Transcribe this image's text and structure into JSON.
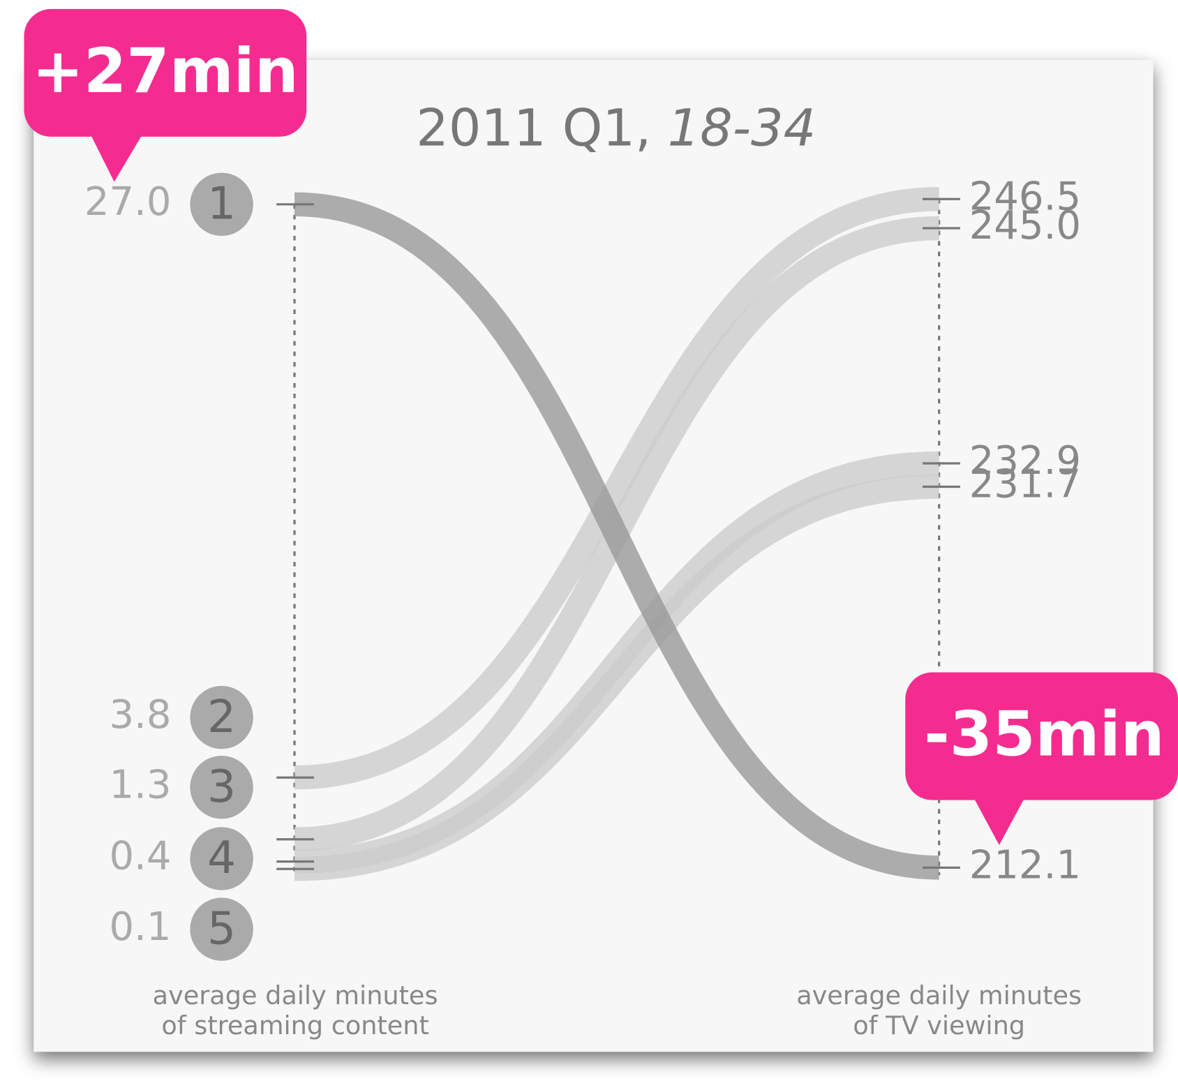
{
  "chart_data": {
    "type": "slope",
    "title": "2011 Q1,",
    "title_italic": "18-34",
    "categories": [
      "1",
      "2",
      "3",
      "4",
      "5"
    ],
    "left_values": [
      27.0,
      3.8,
      1.3,
      0.4,
      0.1
    ],
    "left_value_labels": [
      "27.0",
      "3.8",
      "1.3",
      "0.4",
      "0.1"
    ],
    "right_values": [
      212.1,
      246.5,
      245.0,
      232.9,
      231.7
    ],
    "right_value_labels": [
      "212.1",
      "246.5",
      "245.0",
      "232.9",
      "231.7"
    ],
    "left_ylim": [
      0,
      27
    ],
    "right_ylim": [
      212.1,
      246.5
    ],
    "colors": [
      "#999999",
      "#cccccc",
      "#cccccc",
      "#cccccc",
      "#cccccc"
    ],
    "left_axis_label": [
      "average daily minutes",
      "of streaming content"
    ],
    "right_axis_label": [
      "average daily minutes",
      "of TV viewing"
    ],
    "annotations": [
      "+27min",
      "-35min"
    ]
  }
}
